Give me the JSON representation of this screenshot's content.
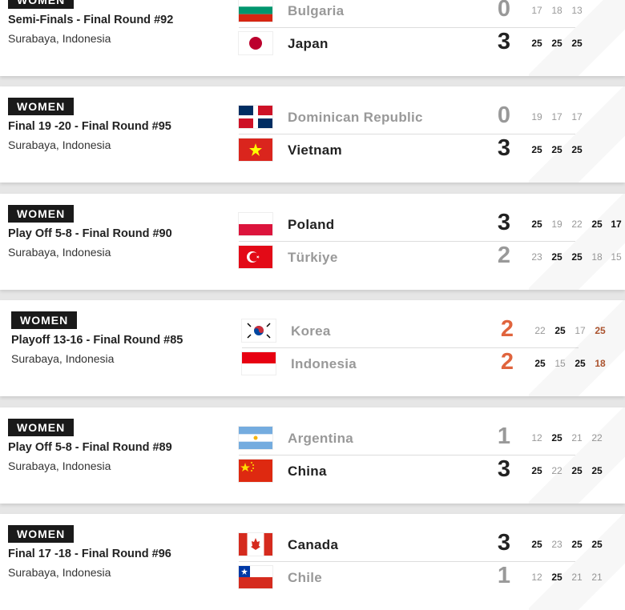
{
  "colors": {
    "accent_live": "#e0643d",
    "badge_bg": "#1a1a1a"
  },
  "matches": [
    {
      "badge": "WOMEN",
      "title": "Semi-Finals - Final Round #92",
      "location": "Surabaya, Indonesia",
      "teams": [
        {
          "name": "Bulgaria",
          "flag": "bulgaria",
          "score": "0",
          "result": "lose",
          "sets": [
            [
              "17",
              "l"
            ],
            [
              "18",
              "l"
            ],
            [
              "13",
              "l"
            ]
          ]
        },
        {
          "name": "Japan",
          "flag": "japan",
          "score": "3",
          "result": "win",
          "sets": [
            [
              "25",
              "w"
            ],
            [
              "25",
              "w"
            ],
            [
              "25",
              "w"
            ]
          ]
        }
      ]
    },
    {
      "badge": "WOMEN",
      "title": "Final 19 -20 - Final Round #95",
      "location": "Surabaya, Indonesia",
      "teams": [
        {
          "name": "Dominican Republic",
          "flag": "dominican-republic",
          "score": "0",
          "result": "lose",
          "sets": [
            [
              "19",
              "l"
            ],
            [
              "17",
              "l"
            ],
            [
              "17",
              "l"
            ]
          ]
        },
        {
          "name": "Vietnam",
          "flag": "vietnam",
          "score": "3",
          "result": "win",
          "sets": [
            [
              "25",
              "w"
            ],
            [
              "25",
              "w"
            ],
            [
              "25",
              "w"
            ]
          ]
        }
      ]
    },
    {
      "badge": "WOMEN",
      "title": "Play Off 5-8 - Final Round #90",
      "location": "Surabaya, Indonesia",
      "teams": [
        {
          "name": "Poland",
          "flag": "poland",
          "score": "3",
          "result": "win",
          "sets": [
            [
              "25",
              "w"
            ],
            [
              "19",
              "l"
            ],
            [
              "22",
              "l"
            ],
            [
              "25",
              "w"
            ],
            [
              "17",
              "w"
            ]
          ]
        },
        {
          "name": "Türkiye",
          "flag": "turkiye",
          "score": "2",
          "result": "lose",
          "sets": [
            [
              "23",
              "l"
            ],
            [
              "25",
              "w"
            ],
            [
              "25",
              "w"
            ],
            [
              "18",
              "l"
            ],
            [
              "15",
              "l"
            ]
          ]
        }
      ]
    },
    {
      "badge": "WOMEN",
      "title": "Playoff 13-16 - Final Round #85",
      "location": "Surabaya, Indonesia",
      "live": true,
      "teams": [
        {
          "name": "Korea",
          "flag": "korea",
          "score": "2",
          "result": "lose",
          "sets": [
            [
              "22",
              "l"
            ],
            [
              "25",
              "w"
            ],
            [
              "17",
              "l"
            ],
            [
              "25",
              "live"
            ]
          ]
        },
        {
          "name": "Indonesia",
          "flag": "indonesia",
          "score": "2",
          "result": "lose",
          "sets": [
            [
              "25",
              "w"
            ],
            [
              "15",
              "l"
            ],
            [
              "25",
              "w"
            ],
            [
              "18",
              "live"
            ]
          ]
        }
      ]
    },
    {
      "badge": "WOMEN",
      "title": "Play Off 5-8 - Final Round #89",
      "location": "Surabaya, Indonesia",
      "teams": [
        {
          "name": "Argentina",
          "flag": "argentina",
          "score": "1",
          "result": "lose",
          "sets": [
            [
              "12",
              "l"
            ],
            [
              "25",
              "w"
            ],
            [
              "21",
              "l"
            ],
            [
              "22",
              "l"
            ]
          ]
        },
        {
          "name": "China",
          "flag": "china",
          "score": "3",
          "result": "win",
          "sets": [
            [
              "25",
              "w"
            ],
            [
              "22",
              "l"
            ],
            [
              "25",
              "w"
            ],
            [
              "25",
              "w"
            ]
          ]
        }
      ]
    },
    {
      "badge": "WOMEN",
      "title": "Final 17 -18 - Final Round #96",
      "location": "Surabaya, Indonesia",
      "teams": [
        {
          "name": "Canada",
          "flag": "canada",
          "score": "3",
          "result": "win",
          "sets": [
            [
              "25",
              "w"
            ],
            [
              "23",
              "l"
            ],
            [
              "25",
              "w"
            ],
            [
              "25",
              "w"
            ]
          ]
        },
        {
          "name": "Chile",
          "flag": "chile",
          "score": "1",
          "result": "lose",
          "sets": [
            [
              "12",
              "l"
            ],
            [
              "25",
              "w"
            ],
            [
              "21",
              "l"
            ],
            [
              "21",
              "l"
            ]
          ]
        }
      ]
    }
  ]
}
